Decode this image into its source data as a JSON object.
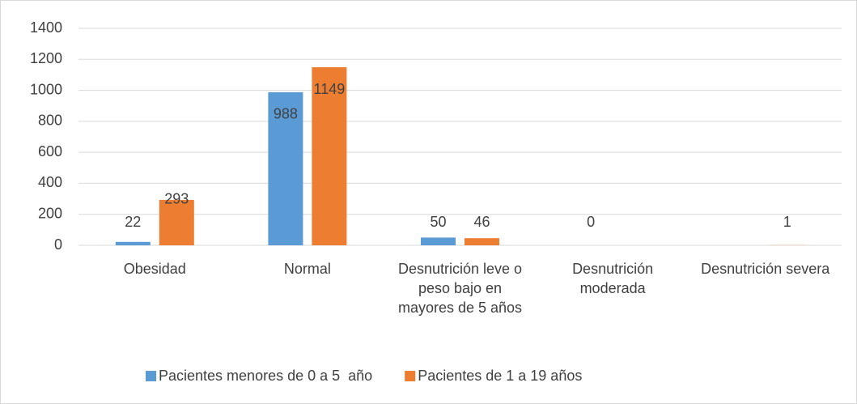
{
  "chart_data": {
    "type": "bar",
    "categories": [
      "Obesidad",
      "Normal",
      "Desnutrición leve o peso bajo en mayores de 5 años",
      "Desnutrición moderada",
      "Desnutrición severa"
    ],
    "series": [
      {
        "name": "Pacientes menores de 0 a 5  año",
        "color": "#5b9bd5",
        "values": [
          22,
          988,
          50,
          0,
          null
        ]
      },
      {
        "name": "Pacientes de 1 a 19 años",
        "color": "#ed7d31",
        "values": [
          293,
          1149,
          46,
          null,
          1
        ]
      }
    ],
    "ylim": [
      0,
      1400
    ],
    "yticks": [
      0,
      200,
      400,
      600,
      800,
      1000,
      1200,
      1400
    ],
    "grid": true,
    "legend": "bottom"
  }
}
